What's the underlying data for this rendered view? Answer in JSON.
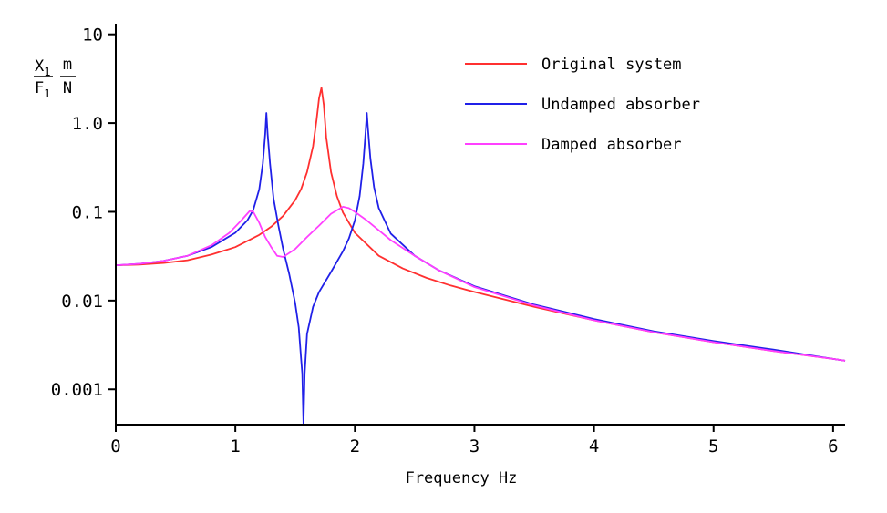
{
  "chart_data": {
    "type": "line",
    "title": "",
    "xlabel": "Frequency Hz",
    "ylabel": {
      "num": "X",
      "num_sub": "1",
      "den": "F",
      "den_sub": "1",
      "unit_num": "m",
      "unit_den": "N"
    },
    "xlim": [
      0,
      6.1
    ],
    "ylim": [
      0.0004,
      12
    ],
    "yscale": "log",
    "grid": false,
    "legend_position": "top-right",
    "x_ticks": [
      0,
      1,
      2,
      3,
      4,
      5,
      6
    ],
    "x_tick_labels": [
      "0",
      "1",
      "2",
      "3",
      "4",
      "5",
      "6"
    ],
    "y_ticks": [
      0.001,
      0.01,
      0.1,
      1.0,
      10
    ],
    "y_tick_labels": [
      "0.001",
      "0.01",
      "0.1",
      "1.0",
      "10"
    ],
    "series": [
      {
        "name": "Original system",
        "color": "#ff3030",
        "points": [
          [
            0,
            0.025
          ],
          [
            0.2,
            0.0255
          ],
          [
            0.4,
            0.0265
          ],
          [
            0.6,
            0.0285
          ],
          [
            0.8,
            0.033
          ],
          [
            1.0,
            0.04
          ],
          [
            1.2,
            0.055
          ],
          [
            1.3,
            0.068
          ],
          [
            1.4,
            0.09
          ],
          [
            1.5,
            0.135
          ],
          [
            1.55,
            0.18
          ],
          [
            1.6,
            0.28
          ],
          [
            1.65,
            0.55
          ],
          [
            1.68,
            1.1
          ],
          [
            1.7,
            1.9
          ],
          [
            1.72,
            2.5
          ],
          [
            1.74,
            1.6
          ],
          [
            1.76,
            0.7
          ],
          [
            1.8,
            0.28
          ],
          [
            1.85,
            0.15
          ],
          [
            1.9,
            0.098
          ],
          [
            2.0,
            0.058
          ],
          [
            2.2,
            0.032
          ],
          [
            2.4,
            0.023
          ],
          [
            2.6,
            0.018
          ],
          [
            2.8,
            0.0148
          ],
          [
            3.0,
            0.0125
          ],
          [
            3.5,
            0.0085
          ],
          [
            4.0,
            0.006
          ],
          [
            4.5,
            0.0044
          ],
          [
            5.0,
            0.0034
          ],
          [
            5.5,
            0.0027
          ],
          [
            6.0,
            0.0022
          ],
          [
            6.1,
            0.0021
          ]
        ]
      },
      {
        "name": "Undamped absorber",
        "color": "#2020e8",
        "points": [
          [
            0,
            0.025
          ],
          [
            0.2,
            0.026
          ],
          [
            0.4,
            0.028
          ],
          [
            0.6,
            0.032
          ],
          [
            0.8,
            0.04
          ],
          [
            1.0,
            0.058
          ],
          [
            1.1,
            0.08
          ],
          [
            1.15,
            0.105
          ],
          [
            1.2,
            0.18
          ],
          [
            1.23,
            0.35
          ],
          [
            1.25,
            0.75
          ],
          [
            1.26,
            1.3
          ],
          [
            1.27,
            0.75
          ],
          [
            1.29,
            0.35
          ],
          [
            1.32,
            0.14
          ],
          [
            1.36,
            0.07
          ],
          [
            1.4,
            0.038
          ],
          [
            1.45,
            0.02
          ],
          [
            1.5,
            0.0095
          ],
          [
            1.53,
            0.005
          ],
          [
            1.55,
            0.0022
          ],
          [
            1.56,
            0.0015
          ],
          [
            1.57,
            0.0004
          ],
          [
            1.58,
            0.0015
          ],
          [
            1.6,
            0.0042
          ],
          [
            1.65,
            0.0085
          ],
          [
            1.7,
            0.0125
          ],
          [
            1.8,
            0.021
          ],
          [
            1.9,
            0.036
          ],
          [
            1.95,
            0.05
          ],
          [
            2.0,
            0.08
          ],
          [
            2.04,
            0.15
          ],
          [
            2.07,
            0.35
          ],
          [
            2.09,
            0.8
          ],
          [
            2.1,
            1.3
          ],
          [
            2.11,
            0.85
          ],
          [
            2.13,
            0.4
          ],
          [
            2.16,
            0.19
          ],
          [
            2.2,
            0.11
          ],
          [
            2.3,
            0.057
          ],
          [
            2.5,
            0.032
          ],
          [
            2.7,
            0.022
          ],
          [
            3.0,
            0.0145
          ],
          [
            3.5,
            0.009
          ],
          [
            4.0,
            0.0062
          ],
          [
            4.5,
            0.0045
          ],
          [
            5.0,
            0.0035
          ],
          [
            5.5,
            0.0028
          ],
          [
            6.0,
            0.0022
          ],
          [
            6.1,
            0.0021
          ]
        ]
      },
      {
        "name": "Damped absorber",
        "color": "#ff40ff",
        "points": [
          [
            0,
            0.025
          ],
          [
            0.2,
            0.026
          ],
          [
            0.4,
            0.028
          ],
          [
            0.6,
            0.032
          ],
          [
            0.8,
            0.042
          ],
          [
            0.95,
            0.058
          ],
          [
            1.05,
            0.08
          ],
          [
            1.12,
            0.102
          ],
          [
            1.15,
            0.1
          ],
          [
            1.2,
            0.075
          ],
          [
            1.25,
            0.052
          ],
          [
            1.3,
            0.04
          ],
          [
            1.35,
            0.032
          ],
          [
            1.4,
            0.031
          ],
          [
            1.5,
            0.038
          ],
          [
            1.6,
            0.052
          ],
          [
            1.7,
            0.07
          ],
          [
            1.8,
            0.095
          ],
          [
            1.9,
            0.114
          ],
          [
            1.95,
            0.11
          ],
          [
            2.0,
            0.1
          ],
          [
            2.1,
            0.08
          ],
          [
            2.2,
            0.062
          ],
          [
            2.3,
            0.048
          ],
          [
            2.5,
            0.032
          ],
          [
            2.7,
            0.022
          ],
          [
            3.0,
            0.0142
          ],
          [
            3.5,
            0.0088
          ],
          [
            4.0,
            0.006
          ],
          [
            4.5,
            0.0044
          ],
          [
            5.0,
            0.0034
          ],
          [
            5.5,
            0.0027
          ],
          [
            6.0,
            0.0022
          ],
          [
            6.1,
            0.0021
          ]
        ]
      }
    ]
  }
}
